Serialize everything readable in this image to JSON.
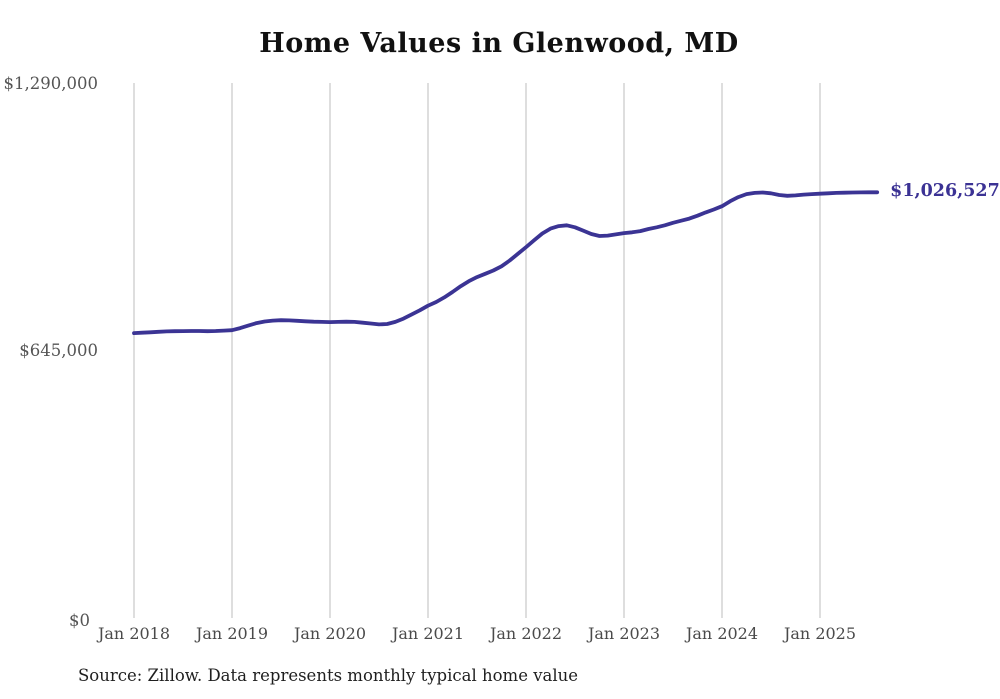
{
  "chart_data": {
    "type": "line",
    "title": "Home Values in Glenwood, MD",
    "source_note": "Source: Zillow. Data represents monthly typical home value",
    "end_label": "$1,026,527",
    "xlabel": "",
    "ylabel": "",
    "x_tick_labels": [
      "Jan 2018",
      "Jan 2019",
      "Jan 2020",
      "Jan 2021",
      "Jan 2022",
      "Jan 2023",
      "Jan 2024",
      "Jan 2025"
    ],
    "y_tick_labels": [
      "$0",
      "$645,000",
      "$1,290,000"
    ],
    "y_tick_values": [
      0,
      645000,
      1290000
    ],
    "ylim": [
      0,
      1290000
    ],
    "grid": "vertical",
    "legend": "none",
    "colors": {
      "line": "#3b3494",
      "grid": "#c9c9c9",
      "axis_text": "#555555",
      "title_text": "#111111",
      "source_text": "#1f1f1f",
      "end_label_text": "#3b3294",
      "background": "#ffffff"
    },
    "series": [
      {
        "name": "Monthly typical home value",
        "color": "#3b3494",
        "x": [
          "2018-01",
          "2018-02",
          "2018-03",
          "2018-04",
          "2018-05",
          "2018-06",
          "2018-07",
          "2018-08",
          "2018-09",
          "2018-10",
          "2018-11",
          "2018-12",
          "2019-01",
          "2019-02",
          "2019-03",
          "2019-04",
          "2019-05",
          "2019-06",
          "2019-07",
          "2019-08",
          "2019-09",
          "2019-10",
          "2019-11",
          "2019-12",
          "2020-01",
          "2020-02",
          "2020-03",
          "2020-04",
          "2020-05",
          "2020-06",
          "2020-07",
          "2020-08",
          "2020-09",
          "2020-10",
          "2020-11",
          "2020-12",
          "2021-01",
          "2021-02",
          "2021-03",
          "2021-04",
          "2021-05",
          "2021-06",
          "2021-07",
          "2021-08",
          "2021-09",
          "2021-10",
          "2021-11",
          "2021-12",
          "2022-01",
          "2022-02",
          "2022-03",
          "2022-04",
          "2022-05",
          "2022-06",
          "2022-07",
          "2022-08",
          "2022-09",
          "2022-10",
          "2022-11",
          "2022-12",
          "2023-01",
          "2023-02",
          "2023-03",
          "2023-04",
          "2023-05",
          "2023-06",
          "2023-07",
          "2023-08",
          "2023-09",
          "2023-10",
          "2023-11",
          "2023-12",
          "2024-01",
          "2024-02",
          "2024-03",
          "2024-04",
          "2024-05",
          "2024-06",
          "2024-07",
          "2024-08",
          "2024-09",
          "2024-10",
          "2024-11",
          "2024-12",
          "2025-01",
          "2025-02",
          "2025-03",
          "2025-04",
          "2025-05",
          "2025-06",
          "2025-07",
          "2025-08"
        ],
        "values": [
          687000,
          688000,
          689000,
          690000,
          691000,
          691500,
          691800,
          692000,
          692000,
          691500,
          692000,
          693000,
          694000,
          699000,
          705000,
          711000,
          715000,
          717000,
          718000,
          717500,
          716500,
          715500,
          714500,
          714000,
          713500,
          714000,
          714500,
          714000,
          712000,
          710000,
          708000,
          709000,
          714000,
          722000,
          732000,
          742000,
          753000,
          762000,
          773000,
          786000,
          800000,
          812000,
          822000,
          830000,
          838000,
          848000,
          862000,
          878000,
          894000,
          911000,
          927000,
          939000,
          945000,
          947000,
          942000,
          934000,
          926000,
          921000,
          922000,
          925000,
          928000,
          930000,
          933000,
          938000,
          942000,
          947000,
          953000,
          958000,
          963000,
          970000,
          978000,
          985000,
          993000,
          1005000,
          1015000,
          1022000,
          1025000,
          1026000,
          1024000,
          1020000,
          1018000,
          1019000,
          1021000,
          1022000,
          1023000,
          1024000,
          1025000,
          1025500,
          1026000,
          1026200,
          1026400,
          1026527
        ]
      }
    ]
  }
}
